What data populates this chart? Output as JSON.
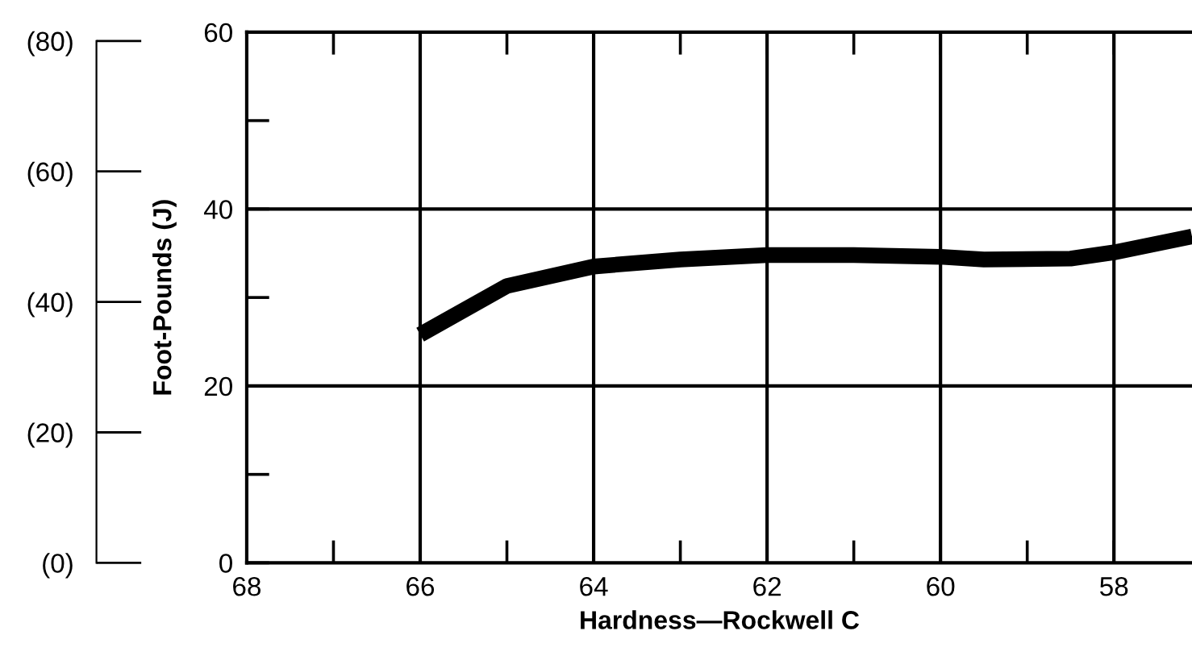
{
  "chart_data": {
    "type": "line",
    "xlabel": "Hardness—Rockwell C",
    "ylabel": "Foot-Pounds (J)",
    "x": [
      66,
      65,
      64,
      63,
      62,
      61,
      60,
      59.5,
      58.5,
      58,
      57.1
    ],
    "series": [
      {
        "color": "#000000",
        "values": [
          25.8,
          31.3,
          33.5,
          34.3,
          34.8,
          34.8,
          34.6,
          34.3,
          34.4,
          35.1,
          36.9
        ]
      }
    ],
    "xlim": [
      68,
      57.1
    ],
    "xticks": [
      68,
      {
        "value": 67,
        "label": null
      },
      66,
      {
        "value": 65,
        "label": null
      },
      64,
      {
        "value": 63,
        "label": null
      },
      62,
      {
        "value": 61,
        "label": null
      },
      60,
      {
        "value": 59,
        "label": null
      },
      58
    ],
    "ylim": [
      0,
      60
    ],
    "yticks": [
      0,
      {
        "value": 10,
        "label": null
      },
      20,
      {
        "value": 30,
        "label": null
      },
      40,
      {
        "value": 50,
        "label": null
      },
      60
    ],
    "y2lim": [
      0,
      81.35
    ],
    "y2ticks": [
      {
        "value": 0,
        "label": "(0)"
      },
      {
        "value": 20,
        "label": "(20)"
      },
      {
        "value": 40,
        "label": "(40)"
      },
      {
        "value": 60,
        "label": "(60)"
      },
      {
        "value": 80,
        "label": "(80)"
      }
    ],
    "grid": true,
    "marker": "none",
    "line_style": "solid"
  }
}
